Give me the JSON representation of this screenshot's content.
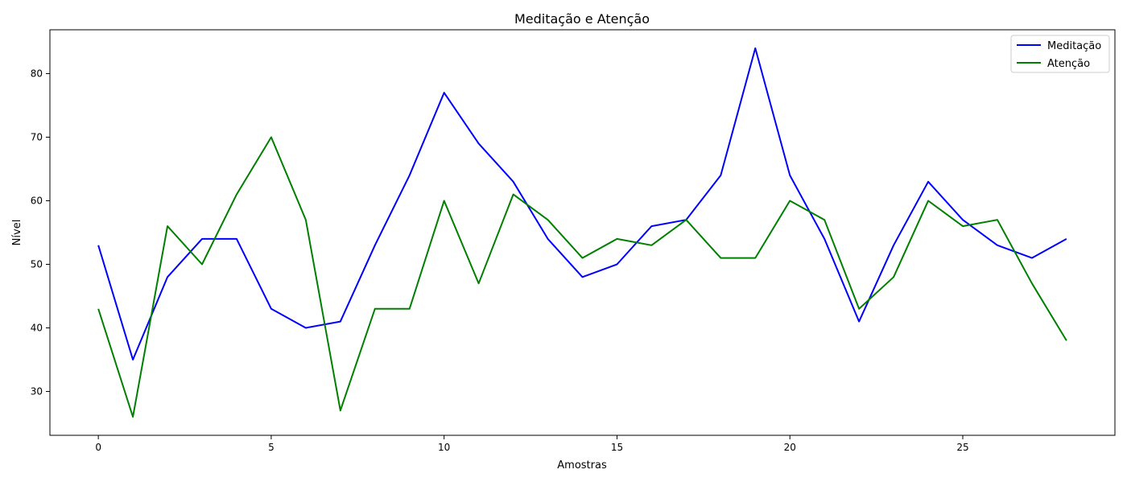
{
  "chart_data": {
    "type": "line",
    "title": "Meditação e Atenção",
    "xlabel": "Amostras",
    "ylabel": "Nível",
    "xlim": [
      -1.4,
      29.4
    ],
    "ylim": [
      23.1,
      86.9
    ],
    "xticks": [
      0,
      5,
      10,
      15,
      20,
      25
    ],
    "yticks": [
      30,
      40,
      50,
      60,
      70,
      80
    ],
    "grid": false,
    "legend_position": "top-right",
    "x": [
      0,
      1,
      2,
      3,
      4,
      5,
      6,
      7,
      8,
      9,
      10,
      11,
      12,
      13,
      14,
      15,
      16,
      17,
      18,
      19,
      20,
      21,
      22,
      23,
      24,
      25,
      26,
      27,
      28
    ],
    "series": [
      {
        "name": "Meditação",
        "color": "#0000ff",
        "values": [
          53,
          35,
          48,
          54,
          54,
          43,
          40,
          41,
          53,
          64,
          77,
          69,
          63,
          54,
          48,
          50,
          56,
          57,
          64,
          84,
          64,
          54,
          41,
          53,
          63,
          57,
          53,
          51,
          54
        ]
      },
      {
        "name": "Atenção",
        "color": "#008000",
        "values": [
          43,
          26,
          56,
          50,
          61,
          70,
          57,
          27,
          43,
          43,
          60,
          47,
          61,
          57,
          51,
          54,
          53,
          57,
          51,
          51,
          60,
          57,
          43,
          48,
          60,
          56,
          57,
          47,
          38
        ]
      }
    ]
  }
}
